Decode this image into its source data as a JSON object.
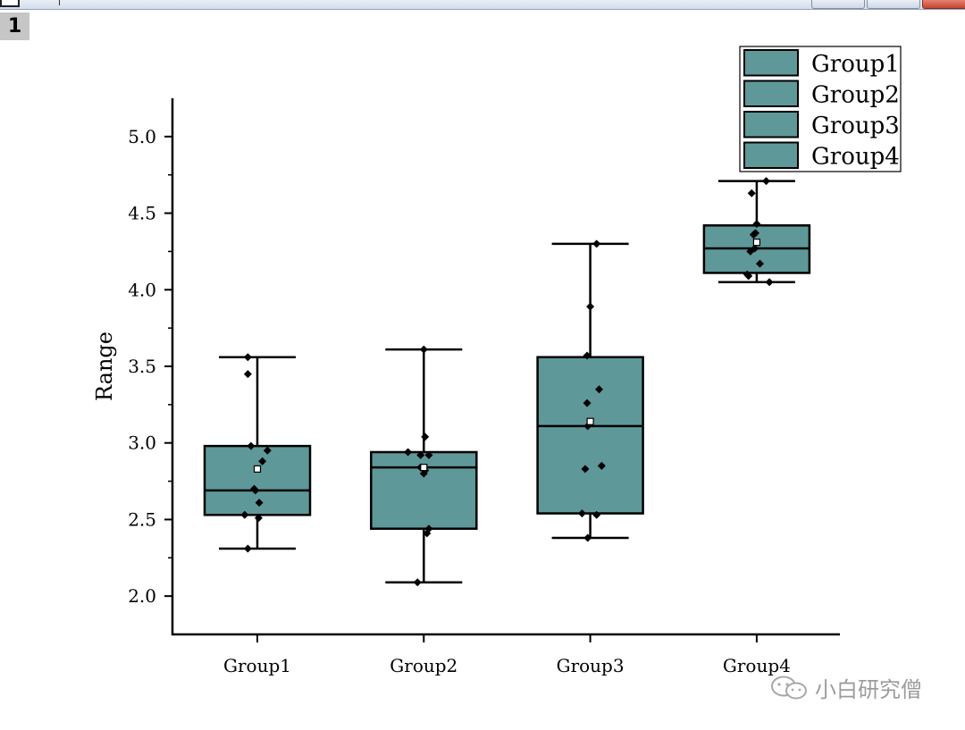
{
  "window": {
    "page_number": "1"
  },
  "colors": {
    "box_fill": "#5f9898",
    "stroke": "#000000"
  },
  "watermark": {
    "text": "小白研究僧",
    "icon": "wechat-icon"
  },
  "chart_data": {
    "type": "box",
    "title": "",
    "xlabel": "",
    "ylabel": "Range",
    "ylim": [
      1.75,
      5.25
    ],
    "y_ticks": [
      2.0,
      2.5,
      3.0,
      3.5,
      4.0,
      4.5,
      5.0
    ],
    "y_tick_labels": [
      "2.0",
      "2.5",
      "3.0",
      "3.5",
      "4.0",
      "4.5",
      "5.0"
    ],
    "categories": [
      "Group1",
      "Group2",
      "Group3",
      "Group4"
    ],
    "legend": {
      "position": "top-right",
      "entries": [
        "Group1",
        "Group2",
        "Group3",
        "Group4"
      ]
    },
    "series": [
      {
        "name": "Group1",
        "whisker_low": 2.31,
        "q1": 2.53,
        "median": 2.69,
        "q3": 2.98,
        "whisker_high": 3.56,
        "mean": 2.83,
        "points": [
          3.56,
          3.45,
          2.98,
          2.95,
          2.88,
          2.7,
          2.69,
          2.61,
          2.53,
          2.51,
          2.31
        ],
        "offsets": [
          -0.15,
          -0.15,
          -0.1,
          0.16,
          0.08,
          -0.05,
          -0.03,
          0.03,
          -0.2,
          0.02,
          -0.15
        ]
      },
      {
        "name": "Group2",
        "whisker_low": 2.09,
        "q1": 2.44,
        "median": 2.84,
        "q3": 2.94,
        "whisker_high": 3.61,
        "mean": 2.84,
        "points": [
          3.61,
          3.04,
          2.94,
          2.92,
          2.92,
          2.84,
          2.82,
          2.8,
          2.44,
          2.41,
          2.09
        ],
        "offsets": [
          0.0,
          0.02,
          -0.25,
          0.08,
          -0.05,
          -0.05,
          0.02,
          0.0,
          0.08,
          0.05,
          -0.1
        ]
      },
      {
        "name": "Group3",
        "whisker_low": 2.38,
        "q1": 2.54,
        "median": 3.11,
        "q3": 3.56,
        "whisker_high": 4.3,
        "mean": 3.14,
        "points": [
          4.3,
          3.89,
          3.57,
          3.35,
          3.26,
          3.11,
          2.85,
          2.83,
          2.54,
          2.53,
          2.38
        ],
        "offsets": [
          0.1,
          0.0,
          -0.05,
          0.14,
          -0.05,
          -0.04,
          0.18,
          -0.08,
          -0.13,
          0.1,
          -0.04
        ]
      },
      {
        "name": "Group4",
        "whisker_low": 4.05,
        "q1": 4.11,
        "median": 4.27,
        "q3": 4.42,
        "whisker_high": 4.71,
        "mean": 4.31,
        "points": [
          4.71,
          4.63,
          4.43,
          4.37,
          4.36,
          4.27,
          4.25,
          4.17,
          4.1,
          4.09,
          4.05
        ],
        "offsets": [
          0.15,
          -0.08,
          0.0,
          -0.02,
          -0.05,
          -0.03,
          -0.1,
          0.05,
          -0.15,
          -0.13,
          0.2
        ]
      }
    ]
  }
}
